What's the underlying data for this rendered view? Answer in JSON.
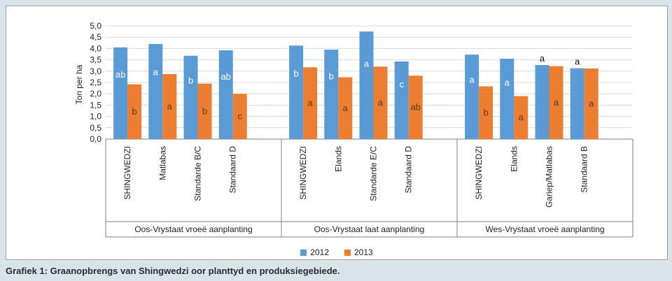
{
  "caption": "Grafiek 1: Graanopbrengs van Shingwedzi oor planttyd en produksiegebiede.",
  "colors": {
    "series_2012": "#5b9bd5",
    "series_2013": "#ed7d31",
    "grid": "#d9d9d9",
    "axis": "#7f7f7f"
  },
  "chart_data": {
    "type": "bar",
    "ylabel": "Ton per ha",
    "ylim": [
      0,
      5.0
    ],
    "yticks": [
      "0,0",
      "0,5",
      "1,0",
      "1,5",
      "2,0",
      "2,5",
      "3,0",
      "3,5",
      "4,0",
      "4,5",
      "5,0"
    ],
    "legend_position": "bottom",
    "groups": [
      {
        "name": "Oos-Vrystaat vroeë aanplanting",
        "categories": [
          "SHINGWEDZI",
          "Matlabas",
          "Standarde B/C",
          "Standaard D"
        ],
        "values_2012": [
          4.05,
          4.2,
          3.68,
          3.92
        ],
        "values_2013": [
          2.42,
          2.87,
          2.45,
          2.0
        ],
        "letters_2012": [
          "ab",
          "a",
          "b",
          "ab"
        ],
        "letters_2013": [
          "b",
          "a",
          "b",
          "c"
        ]
      },
      {
        "name": "Oos-Vrystaat laat aanplanting",
        "categories": [
          "SHINGWEDZI",
          "Elands",
          "Standarde E/C",
          "Standaard D"
        ],
        "values_2012": [
          4.13,
          3.95,
          4.75,
          3.43
        ],
        "values_2013": [
          3.17,
          2.73,
          3.2,
          2.8
        ],
        "letters_2012": [
          "b",
          "b",
          "a",
          "c"
        ],
        "letters_2013": [
          "a",
          "a",
          "a",
          "ab"
        ]
      },
      {
        "name": "Wes-Vrystaat vroeë aanplanting",
        "categories": [
          "SHINGWEDZI",
          "Elands",
          "Gariep/Matlabas",
          "Standaard B"
        ],
        "values_2012": [
          3.73,
          3.55,
          3.27,
          3.13
        ],
        "values_2013": [
          2.33,
          1.9,
          3.22,
          3.12
        ],
        "letters_2012": [
          "a",
          "a",
          "a",
          "a"
        ],
        "letters_2013": [
          "b",
          "a",
          "a",
          "a"
        ]
      }
    ],
    "series": [
      {
        "name": "2012"
      },
      {
        "name": "2013"
      }
    ]
  }
}
